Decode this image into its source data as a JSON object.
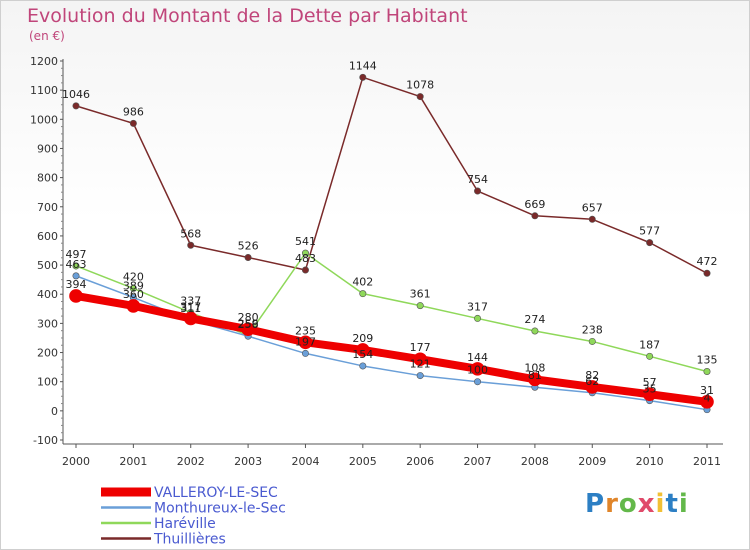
{
  "chart_data": {
    "type": "line",
    "title": "Evolution du Montant de la Dette par Habitant",
    "unit": "(en €)",
    "x": [
      "2000",
      "2001",
      "2002",
      "2003",
      "2004",
      "2005",
      "2006",
      "2007",
      "2008",
      "2009",
      "2010",
      "2011"
    ],
    "ylim": [
      -100,
      1200
    ],
    "yticks": [
      -100,
      0,
      100,
      200,
      300,
      400,
      500,
      600,
      700,
      800,
      900,
      1000,
      1100,
      1200
    ],
    "grid": false,
    "legend_position": "bottom-left",
    "series": [
      {
        "name": "VALLEROY-LE-SEC",
        "color": "#ee0000",
        "width": 8,
        "values": [
          394,
          360,
          317,
          280,
          235,
          209,
          177,
          144,
          108,
          82,
          57,
          31
        ]
      },
      {
        "name": "Monthureux-le-Sec",
        "color": "#6a9fd8",
        "width": 1.5,
        "values": [
          463,
          389,
          311,
          256,
          197,
          154,
          121,
          100,
          81,
          62,
          35,
          4
        ]
      },
      {
        "name": "Haréville",
        "color": "#8fd85a",
        "width": 1.5,
        "values": [
          497,
          420,
          337,
          259,
          541,
          402,
          361,
          317,
          274,
          238,
          187,
          135
        ]
      },
      {
        "name": "Thuillières",
        "color": "#7a2a2a",
        "width": 1.5,
        "values": [
          1046,
          986,
          568,
          526,
          483,
          1144,
          1078,
          754,
          669,
          657,
          577,
          472
        ]
      }
    ]
  },
  "logo": {
    "text": "Proxiti"
  }
}
